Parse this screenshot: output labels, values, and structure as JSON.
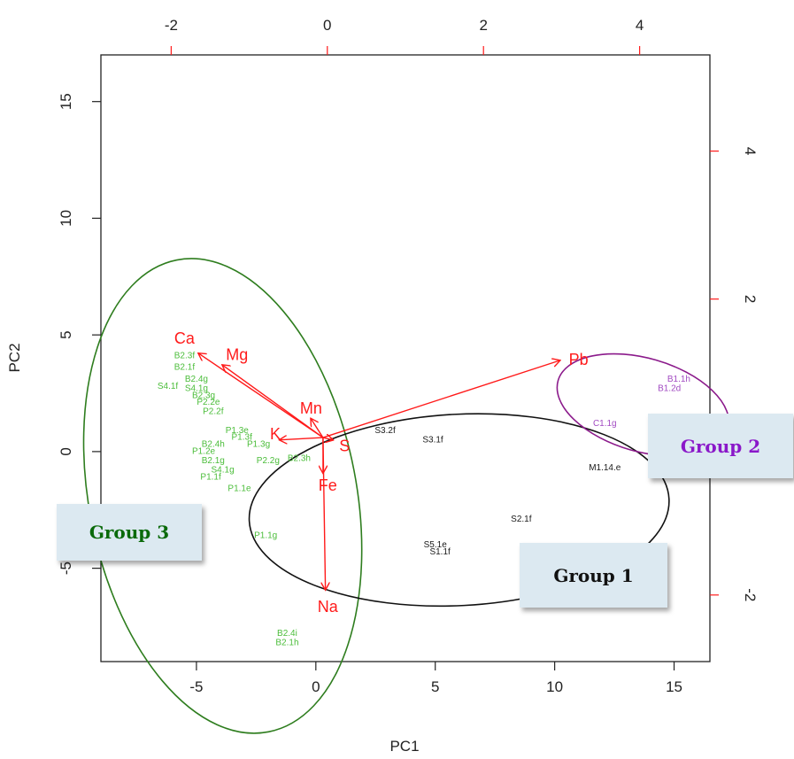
{
  "chart_data": {
    "type": "scatter",
    "subtype": "pca-biplot",
    "xlabel": "PC1",
    "ylabel": "PC2",
    "xlim": [
      -9,
      16.5
    ],
    "ylim": [
      -9,
      17
    ],
    "x_ticks": [
      -5,
      0,
      5,
      10,
      15
    ],
    "y_ticks": [
      -5,
      0,
      5,
      10,
      15
    ],
    "y_tick_labels": [
      "-5",
      "0",
      "5",
      "10",
      "15"
    ],
    "top_axis": {
      "lim": [
        -2.9,
        4.9
      ],
      "ticks": [
        "-2",
        "0",
        "2",
        "4"
      ],
      "color": "#ff1a1a"
    },
    "right_axis": {
      "lim": [
        -2.9,
        5.3
      ],
      "ticks": [
        "-2",
        "2",
        "4"
      ],
      "color": "#ff1a1a"
    },
    "observations": [
      {
        "label": "B2.3f",
        "x": -5.5,
        "y": 4.1,
        "group": "3"
      },
      {
        "label": "B2.1f",
        "x": -5.5,
        "y": 3.6,
        "group": "3"
      },
      {
        "label": "B2.4g",
        "x": -5.0,
        "y": 3.1,
        "group": "3"
      },
      {
        "label": "S4.1f",
        "x": -6.2,
        "y": 2.8,
        "group": "3"
      },
      {
        "label": "S4.1g",
        "x": -5.0,
        "y": 2.7,
        "group": "3"
      },
      {
        "label": "B2.3g",
        "x": -4.7,
        "y": 2.4,
        "group": "3"
      },
      {
        "label": "P2.2e",
        "x": -4.5,
        "y": 2.1,
        "group": "3"
      },
      {
        "label": "P2.2f",
        "x": -4.3,
        "y": 1.7,
        "group": "3"
      },
      {
        "label": "P1.3e",
        "x": -3.3,
        "y": 0.9,
        "group": "3"
      },
      {
        "label": "P1.3f",
        "x": -3.1,
        "y": 0.6,
        "group": "3"
      },
      {
        "label": "B2.4h",
        "x": -4.3,
        "y": 0.3,
        "group": "3"
      },
      {
        "label": "P1.3g",
        "x": -2.4,
        "y": 0.3,
        "group": "3"
      },
      {
        "label": "P1.2e",
        "x": -4.7,
        "y": 0.0,
        "group": "3"
      },
      {
        "label": "B2.1g",
        "x": -4.3,
        "y": -0.4,
        "group": "3"
      },
      {
        "label": "P2.2g",
        "x": -2.0,
        "y": -0.4,
        "group": "3"
      },
      {
        "label": "B2.3h",
        "x": -0.7,
        "y": -0.3,
        "group": "3"
      },
      {
        "label": "S4.1g",
        "x": -3.9,
        "y": -0.8,
        "group": "3"
      },
      {
        "label": "P1.1f",
        "x": -4.4,
        "y": -1.1,
        "group": "3"
      },
      {
        "label": "P1.1e",
        "x": -3.2,
        "y": -1.6,
        "group": "3"
      },
      {
        "label": "P1.1g",
        "x": -2.1,
        "y": -3.6,
        "group": "3"
      },
      {
        "label": "B2.4i",
        "x": -1.2,
        "y": -7.8,
        "group": "3"
      },
      {
        "label": "B2.1h",
        "x": -1.2,
        "y": -8.2,
        "group": "3"
      },
      {
        "label": "S3.2f",
        "x": 2.9,
        "y": 0.9,
        "group": "1"
      },
      {
        "label": "S3.1f",
        "x": 4.9,
        "y": 0.5,
        "group": "1"
      },
      {
        "label": "M1.14.e",
        "x": 12.1,
        "y": -0.7,
        "group": "1"
      },
      {
        "label": "S2.1f",
        "x": 8.6,
        "y": -2.9,
        "group": "1"
      },
      {
        "label": "S5.1e",
        "x": 5.0,
        "y": -4.0,
        "group": "1"
      },
      {
        "label": "S1.1f",
        "x": 5.2,
        "y": -4.3,
        "group": "1"
      },
      {
        "label": "B1.1h",
        "x": 15.2,
        "y": 3.1,
        "group": "2"
      },
      {
        "label": "B1.2d",
        "x": 14.8,
        "y": 2.7,
        "group": "2"
      },
      {
        "label": "C1.1g",
        "x": 12.1,
        "y": 1.2,
        "group": "2"
      }
    ],
    "loadings": [
      {
        "label": "Ca",
        "x": -4.9,
        "y": 4.2,
        "lx": -5.5,
        "ly": 4.8
      },
      {
        "label": "Mg",
        "x": -3.9,
        "y": 3.7,
        "lx": -3.3,
        "ly": 4.1
      },
      {
        "label": "Mn",
        "x": -0.2,
        "y": 1.4,
        "lx": -0.2,
        "ly": 1.8
      },
      {
        "label": "K",
        "x": -1.5,
        "y": 0.5,
        "lx": -1.7,
        "ly": 0.7
      },
      {
        "label": "S",
        "x": 0.7,
        "y": 0.5,
        "lx": 1.2,
        "ly": 0.2
      },
      {
        "label": "Pb",
        "x": 10.2,
        "y": 3.9,
        "lx": 11.0,
        "ly": 3.9
      },
      {
        "label": "Fe",
        "x": 0.3,
        "y": -0.9,
        "lx": 0.5,
        "ly": -1.5
      },
      {
        "label": "Na",
        "x": 0.4,
        "y": -5.9,
        "lx": 0.5,
        "ly": -6.7
      }
    ],
    "loading_origin": {
      "x": 0.3,
      "y": 0.6
    },
    "groups": [
      {
        "id": "3",
        "label": "Group 3",
        "color": "#2e7d1e",
        "ellipse": {
          "cx": -3.9,
          "cy": -1.9,
          "rx": 5.6,
          "ry": 10.3,
          "angle": -11
        }
      },
      {
        "id": "1",
        "label": "Group 1",
        "color": "#111111",
        "ellipse": {
          "cx": 6.0,
          "cy": -2.5,
          "rx": 8.8,
          "ry": 4.1,
          "angle": -3
        }
      },
      {
        "id": "2",
        "label": "Group 2",
        "color": "#8b1a8b",
        "ellipse": {
          "cx": 13.7,
          "cy": 2.0,
          "rx": 3.7,
          "ry": 2.0,
          "angle": 16
        }
      }
    ],
    "colors": {
      "group3_points": "#4bbd3a",
      "group1_points": "#1a1a1a",
      "group2_points": "#a24bc2",
      "loadings": "#ff1a1a"
    }
  },
  "callouts": {
    "group3": {
      "text": "Group 3",
      "color": "#0a6a0a"
    },
    "group1": {
      "text": "Group 1",
      "color": "#111111"
    },
    "group2": {
      "text": "Group 2",
      "color": "#8a18c9"
    }
  }
}
